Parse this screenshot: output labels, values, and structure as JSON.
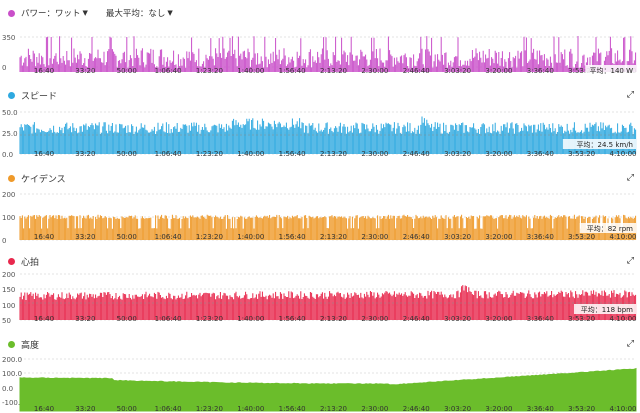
{
  "x_ticks": [
    "16:40",
    "33:20",
    "50:00",
    "1:06:40",
    "1:23:20",
    "1:40:00",
    "1:56:40",
    "2:13:20",
    "2:30:00",
    "2:46:40",
    "3:03:20",
    "3:20:00",
    "3:36:40",
    "3:53:20",
    "4:10:00"
  ],
  "power": {
    "title": "パワー：ワット",
    "filter_label": "最大平均：なし",
    "color": "#c94fc9",
    "y_ticks": [
      "350",
      "0"
    ],
    "avg_label": "平均：140 W",
    "expand_icon": "expand-icon"
  },
  "speed": {
    "title": "スピード",
    "color": "#2fa9e0",
    "y_ticks": [
      "50.0",
      "25.0",
      "0.0"
    ],
    "avg_label": "平均：24.5 km/h"
  },
  "cadence": {
    "title": "ケイデンス",
    "color": "#ef9a2a",
    "y_ticks": [
      "200",
      "100",
      "0"
    ],
    "avg_label": "平均：82 rpm"
  },
  "heart_rate": {
    "title": "心拍",
    "color": "#e8284d",
    "y_ticks": [
      "200",
      "150",
      "100",
      "50"
    ],
    "avg_label": "平均：118 bpm"
  },
  "elevation": {
    "title": "高度",
    "color": "#6bbd2b",
    "y_ticks": [
      "200.0",
      "100.0",
      "0.0",
      "-100.0"
    ]
  }
}
